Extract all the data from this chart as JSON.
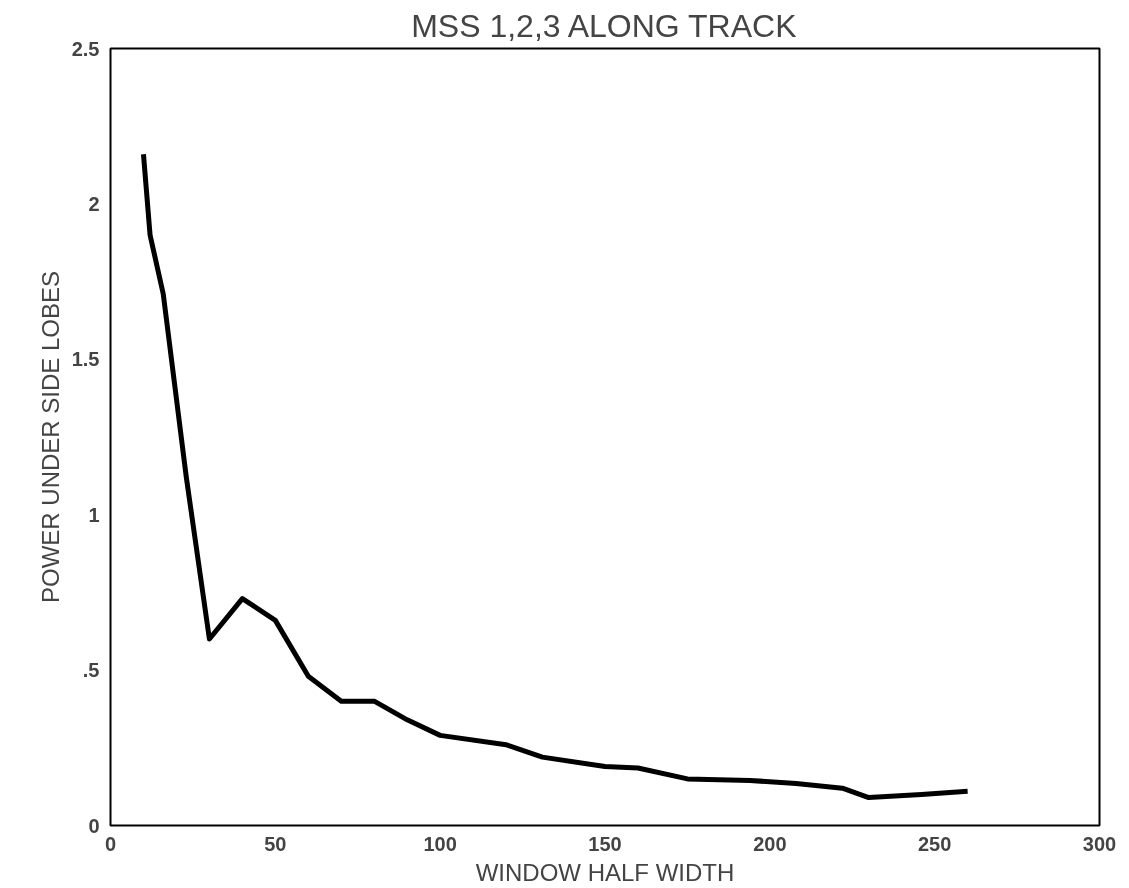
{
  "chart_data": {
    "type": "line",
    "title": "MSS 1,2,3 ALONG TRACK",
    "xlabel": "WINDOW HALF WIDTH",
    "ylabel": "POWER UNDER SIDE LOBES",
    "x": [
      10,
      12,
      16,
      23,
      30,
      40,
      50,
      60,
      70,
      80,
      90,
      100,
      120,
      131,
      150,
      160,
      175,
      194,
      208,
      222,
      230,
      246,
      260
    ],
    "values": [
      2.16,
      1.9,
      1.71,
      1.12,
      0.6,
      0.73,
      0.66,
      0.48,
      0.4,
      0.4,
      0.34,
      0.29,
      0.26,
      0.22,
      0.19,
      0.185,
      0.15,
      0.145,
      0.135,
      0.12,
      0.09,
      0.1,
      0.11
    ],
    "color": "#000000",
    "xlim": [
      0,
      300
    ],
    "ylim": [
      0,
      2.5
    ],
    "xticks": [
      0,
      50,
      100,
      150,
      200,
      250,
      300
    ],
    "yticks": [
      0,
      {
        "value": 0.5,
        "label": ".5"
      },
      1,
      1.5,
      2,
      2.5
    ],
    "grid": false,
    "marker": "none",
    "line_style": "solid"
  }
}
